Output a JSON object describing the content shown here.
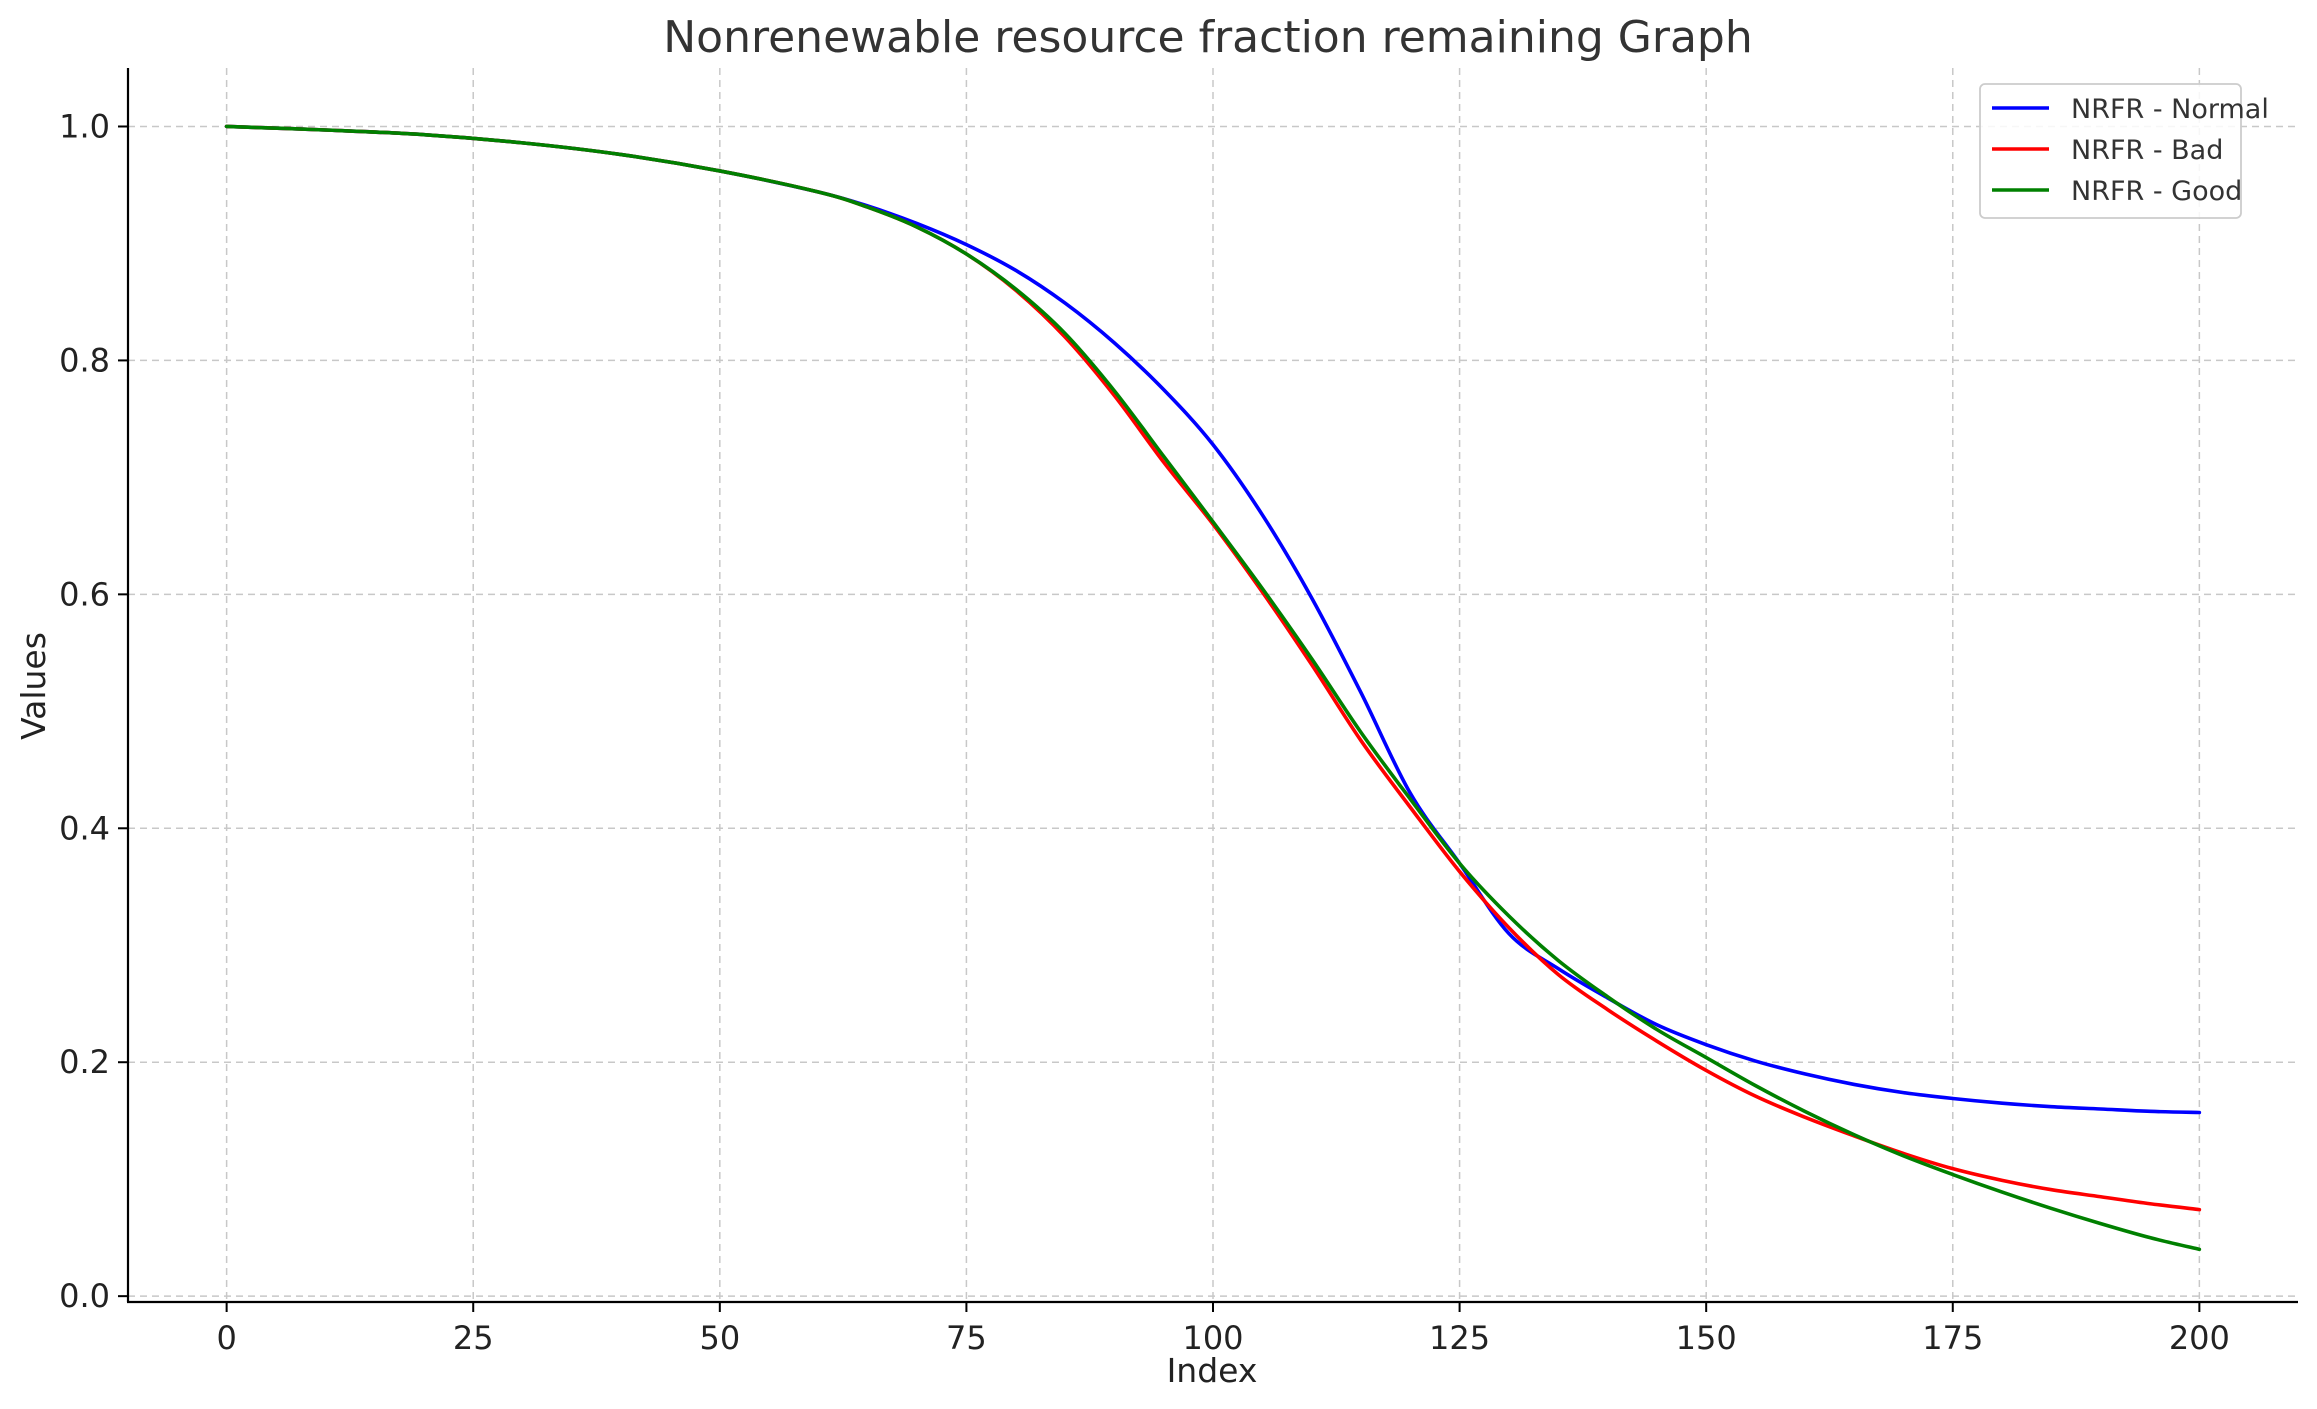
{
  "chart_data": {
    "type": "line",
    "title": "Nonrenewable resource fraction remaining Graph",
    "xlabel": "Index",
    "ylabel": "Values",
    "xlim": [
      -10,
      210
    ],
    "ylim": [
      -0.005,
      1.05
    ],
    "xticks": [
      0,
      25,
      50,
      75,
      100,
      125,
      150,
      175,
      200
    ],
    "yticks": [
      0.0,
      0.2,
      0.4,
      0.6,
      0.8,
      1.0
    ],
    "xtick_labels": [
      "0",
      "25",
      "50",
      "75",
      "100",
      "125",
      "150",
      "175",
      "200"
    ],
    "ytick_labels": [
      "0.0",
      "0.2",
      "0.4",
      "0.6",
      "0.8",
      "1.0"
    ],
    "grid": true,
    "legend_position": "top-right",
    "x": [
      0,
      10,
      20,
      30,
      40,
      50,
      60,
      65,
      70,
      75,
      80,
      85,
      90,
      95,
      100,
      105,
      110,
      115,
      120,
      125,
      130,
      135,
      140,
      145,
      150,
      155,
      160,
      165,
      170,
      175,
      180,
      185,
      190,
      195,
      200
    ],
    "series": [
      {
        "name": "NRFR - Normal",
        "color": "#0000ff",
        "values": [
          1.0,
          0.997,
          0.993,
          0.986,
          0.976,
          0.962,
          0.944,
          0.932,
          0.917,
          0.899,
          0.877,
          0.849,
          0.815,
          0.775,
          0.728,
          0.668,
          0.597,
          0.516,
          0.43,
          0.37,
          0.31,
          0.28,
          0.255,
          0.232,
          0.215,
          0.201,
          0.19,
          0.181,
          0.174,
          0.169,
          0.165,
          0.162,
          0.16,
          0.158,
          0.157
        ]
      },
      {
        "name": "NRFR - Bad",
        "color": "#ff0000",
        "values": [
          1.0,
          0.997,
          0.993,
          0.986,
          0.976,
          0.962,
          0.944,
          0.931,
          0.914,
          0.891,
          0.86,
          0.82,
          0.77,
          0.713,
          0.66,
          0.602,
          0.54,
          0.475,
          0.418,
          0.363,
          0.315,
          0.275,
          0.245,
          0.218,
          0.193,
          0.171,
          0.153,
          0.137,
          0.122,
          0.109,
          0.099,
          0.091,
          0.085,
          0.079,
          0.074
        ]
      },
      {
        "name": "NRFR - Good",
        "color": "#008000",
        "values": [
          1.0,
          0.997,
          0.993,
          0.986,
          0.976,
          0.962,
          0.944,
          0.931,
          0.914,
          0.891,
          0.861,
          0.823,
          0.774,
          0.718,
          0.662,
          0.605,
          0.545,
          0.482,
          0.425,
          0.37,
          0.325,
          0.287,
          0.256,
          0.228,
          0.204,
          0.18,
          0.158,
          0.138,
          0.12,
          0.104,
          0.089,
          0.075,
          0.062,
          0.05,
          0.04
        ]
      }
    ]
  }
}
